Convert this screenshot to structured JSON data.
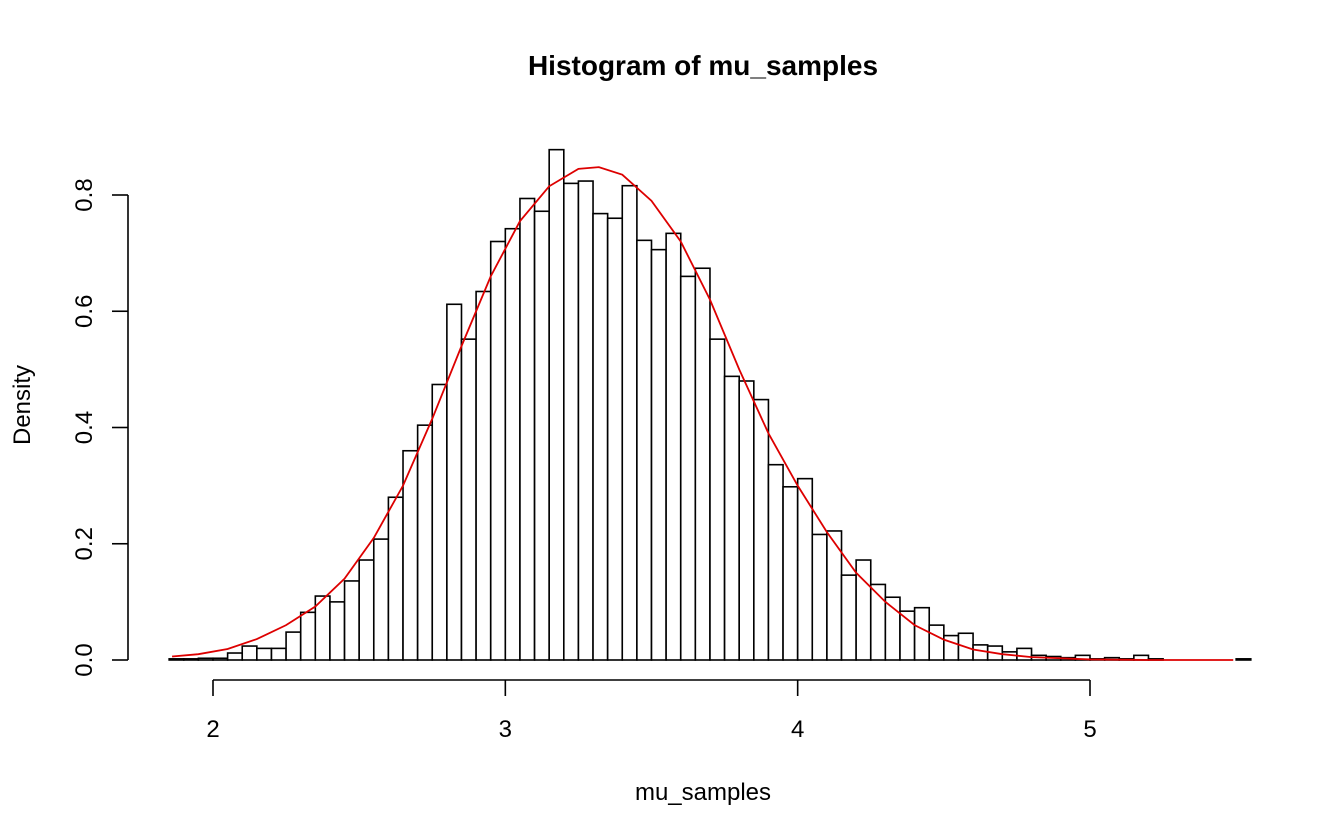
{
  "chart_data": {
    "type": "bar",
    "title": "Histogram of mu_samples",
    "xlabel": "mu_samples",
    "ylabel": "Density",
    "xlim": [
      1.84,
      5.49
    ],
    "ylim": [
      0,
      0.88
    ],
    "x_ticks": [
      2,
      3,
      4,
      5
    ],
    "y_ticks": [
      0.0,
      0.2,
      0.4,
      0.6,
      0.8
    ],
    "x_tick_labels": [
      "2",
      "3",
      "4",
      "5"
    ],
    "y_tick_labels": [
      "0.0",
      "0.2",
      "0.4",
      "0.6",
      "0.8"
    ],
    "bin_width": 0.05,
    "bin_start": 1.85,
    "grid": false,
    "bar_fill": "#ffffff",
    "bar_stroke": "#000000",
    "density_color": "#dd0000",
    "values": [
      0.002,
      0.002,
      0.003,
      0.003,
      0.012,
      0.024,
      0.02,
      0.02,
      0.048,
      0.082,
      0.11,
      0.1,
      0.136,
      0.172,
      0.208,
      0.28,
      0.36,
      0.404,
      0.474,
      0.612,
      0.552,
      0.634,
      0.72,
      0.742,
      0.794,
      0.772,
      0.878,
      0.82,
      0.824,
      0.768,
      0.76,
      0.816,
      0.722,
      0.706,
      0.734,
      0.66,
      0.674,
      0.552,
      0.488,
      0.48,
      0.448,
      0.336,
      0.298,
      0.312,
      0.216,
      0.222,
      0.146,
      0.172,
      0.13,
      0.108,
      0.084,
      0.09,
      0.06,
      0.042,
      0.046,
      0.026,
      0.024,
      0.014,
      0.02,
      0.008,
      0.006,
      0.004,
      0.008,
      0.002,
      0.004,
      0.002,
      0.008,
      0.002,
      0.0,
      0.0,
      0.0,
      0.0,
      0.0,
      0.002
    ],
    "density_curve": {
      "x": [
        1.86,
        1.95,
        2.05,
        2.15,
        2.25,
        2.35,
        2.45,
        2.55,
        2.65,
        2.75,
        2.85,
        2.95,
        3.05,
        3.15,
        3.25,
        3.32,
        3.4,
        3.5,
        3.6,
        3.7,
        3.8,
        3.9,
        4.0,
        4.1,
        4.2,
        4.3,
        4.4,
        4.5,
        4.6,
        4.7,
        4.8,
        4.9,
        5.0,
        5.2,
        5.49
      ],
      "y": [
        0.006,
        0.01,
        0.019,
        0.036,
        0.06,
        0.092,
        0.14,
        0.21,
        0.3,
        0.415,
        0.54,
        0.66,
        0.755,
        0.815,
        0.845,
        0.848,
        0.835,
        0.79,
        0.72,
        0.62,
        0.5,
        0.39,
        0.3,
        0.22,
        0.15,
        0.1,
        0.06,
        0.035,
        0.018,
        0.01,
        0.005,
        0.003,
        0.001,
        0.0,
        0.0
      ]
    }
  }
}
